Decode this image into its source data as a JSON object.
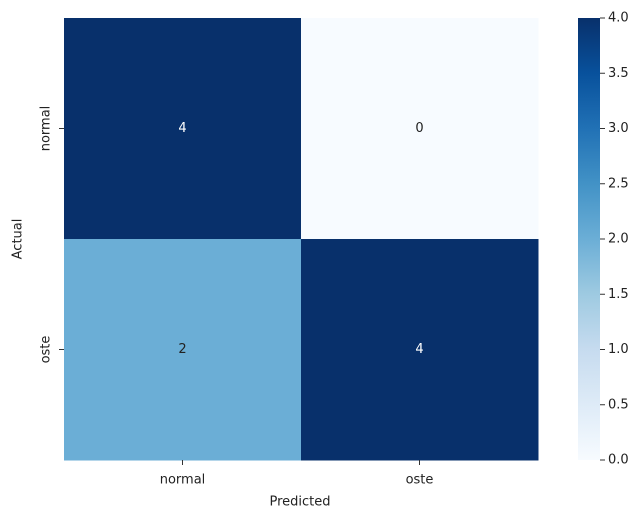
{
  "chart_data": {
    "type": "heatmap",
    "x_categories": [
      "normal",
      "oste"
    ],
    "y_categories": [
      "normal",
      "oste"
    ],
    "values": [
      [
        4,
        0
      ],
      [
        2,
        4
      ]
    ],
    "xlabel": "Predicted",
    "ylabel": "Actual",
    "colormap": "Blues",
    "colorbar_lim": [
      0,
      4
    ],
    "colorbar_ticks": [
      {
        "value": 0,
        "label": "0.0"
      },
      {
        "value": 0.5,
        "label": "0.5"
      },
      {
        "value": 1,
        "label": "1.0"
      },
      {
        "value": 1.5,
        "label": "1.5"
      },
      {
        "value": 2,
        "label": "2.0"
      },
      {
        "value": 2.5,
        "label": "2.5"
      },
      {
        "value": 3,
        "label": "3.0"
      },
      {
        "value": 3.5,
        "label": "3.5"
      },
      {
        "value": 4,
        "label": "4.0"
      }
    ]
  }
}
